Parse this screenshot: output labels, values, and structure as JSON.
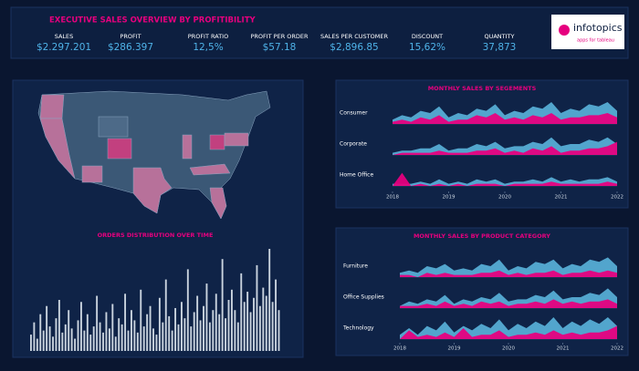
{
  "header": {
    "title": "EXECUTIVE SALES OVERVIEW BY PROFITIBILITY",
    "logo": "infotopics",
    "tagline": "apps for tableau"
  },
  "kpis": [
    {
      "label": "SALES",
      "value": "$2.297.201"
    },
    {
      "label": "PROFIT",
      "value": "$286.397"
    },
    {
      "label": "PROFIT RATIO",
      "value": "12,5%"
    },
    {
      "label": "PROFIT PER ORDER",
      "value": "$57.18"
    },
    {
      "label": "SALES PER CUSTOMER",
      "value": "$2,896.85"
    },
    {
      "label": "DISCOUNT",
      "value": "15,62%"
    },
    {
      "label": "QUANTITY",
      "value": "37,873"
    }
  ],
  "chart_data": [
    {
      "type": "bar",
      "title": "ORDERS DISTRIBUTION OVER TIME",
      "color": "#c9d3de",
      "values": [
        8,
        14,
        6,
        18,
        10,
        22,
        12,
        7,
        16,
        25,
        9,
        13,
        20,
        11,
        6,
        15,
        24,
        10,
        18,
        8,
        12,
        27,
        14,
        9,
        19,
        11,
        23,
        7,
        16,
        13,
        28,
        10,
        20,
        15,
        9,
        30,
        12,
        18,
        22,
        11,
        8,
        26,
        14,
        35,
        17,
        10,
        21,
        13,
        24,
        16,
        40,
        12,
        19,
        27,
        15,
        22,
        33,
        14,
        20,
        28,
        18,
        45,
        16,
        25,
        30,
        20,
        14,
        38,
        24,
        29,
        19,
        26,
        42,
        22,
        31,
        27,
        50,
        24,
        35,
        20
      ]
    },
    {
      "type": "area",
      "title": "MONTHLY SALES BY SEGEMENTS",
      "x": [
        2018,
        2018.17,
        2018.33,
        2018.5,
        2018.67,
        2018.83,
        2019,
        2019.17,
        2019.33,
        2019.5,
        2019.67,
        2019.83,
        2020,
        2020.17,
        2020.33,
        2020.5,
        2020.67,
        2020.83,
        2021,
        2021.17,
        2021.33,
        2021.5,
        2021.67,
        2021.83,
        2022
      ],
      "xlim": [
        2018,
        2022
      ],
      "xticks": [
        2018,
        2019,
        2020,
        2021,
        2022
      ],
      "panels": [
        {
          "label": "Consumer",
          "series": [
            {
              "color": "#5ab4dc",
              "values": [
                2,
                4,
                3,
                6,
                5,
                8,
                3,
                5,
                4,
                7,
                6,
                9,
                4,
                6,
                5,
                8,
                7,
                10,
                5,
                7,
                6,
                9,
                8,
                10,
                6
              ]
            },
            {
              "color": "#e6007e",
              "values": [
                1,
                2,
                1,
                3,
                2,
                4,
                1,
                2,
                2,
                4,
                3,
                5,
                2,
                3,
                2,
                4,
                3,
                5,
                2,
                3,
                3,
                4,
                4,
                5,
                3
              ]
            }
          ]
        },
        {
          "label": "Corporate",
          "series": [
            {
              "color": "#5ab4dc",
              "values": [
                1,
                2,
                2,
                3,
                3,
                5,
                2,
                3,
                3,
                5,
                4,
                6,
                3,
                4,
                4,
                6,
                5,
                8,
                4,
                5,
                5,
                7,
                6,
                8,
                5
              ]
            },
            {
              "color": "#e6007e",
              "values": [
                0,
                1,
                1,
                1,
                1,
                2,
                1,
                1,
                1,
                2,
                2,
                3,
                1,
                2,
                1,
                3,
                2,
                4,
                1,
                2,
                2,
                3,
                3,
                4,
                6
              ]
            }
          ]
        },
        {
          "label": "Home Office",
          "series": [
            {
              "color": "#5ab4dc",
              "values": [
                1,
                1,
                1,
                2,
                1,
                3,
                1,
                2,
                1,
                3,
                2,
                3,
                1,
                2,
                2,
                3,
                2,
                4,
                2,
                3,
                2,
                3,
                3,
                4,
                2
              ]
            },
            {
              "color": "#e6007e",
              "values": [
                0,
                6,
                0,
                1,
                0,
                1,
                0,
                1,
                0,
                1,
                1,
                1,
                0,
                1,
                1,
                1,
                1,
                2,
                1,
                1,
                1,
                1,
                1,
                2,
                1
              ]
            }
          ]
        }
      ]
    },
    {
      "type": "area",
      "title": "MONTHLY SALES BY PRODUCT CATEGORY",
      "x": [
        2018,
        2018.17,
        2018.33,
        2018.5,
        2018.67,
        2018.83,
        2019,
        2019.17,
        2019.33,
        2019.5,
        2019.67,
        2019.83,
        2020,
        2020.17,
        2020.33,
        2020.5,
        2020.67,
        2020.83,
        2021,
        2021.17,
        2021.33,
        2021.5,
        2021.67,
        2021.83,
        2022
      ],
      "xlim": [
        2018,
        2022
      ],
      "xticks": [
        2018,
        2019,
        2020,
        2021,
        2022
      ],
      "panels": [
        {
          "label": "Furniture",
          "series": [
            {
              "color": "#5ab4dc",
              "values": [
                2,
                3,
                2,
                5,
                4,
                6,
                3,
                4,
                3,
                6,
                5,
                8,
                3,
                5,
                4,
                7,
                6,
                8,
                4,
                6,
                5,
                8,
                7,
                9,
                5
              ]
            },
            {
              "color": "#e6007e",
              "values": [
                1,
                1,
                0,
                2,
                1,
                2,
                1,
                1,
                1,
                2,
                2,
                3,
                1,
                2,
                1,
                2,
                2,
                3,
                1,
                2,
                2,
                3,
                2,
                3,
                2
              ]
            }
          ]
        },
        {
          "label": "Office Supplies",
          "series": [
            {
              "color": "#5ab4dc",
              "values": [
                1,
                3,
                2,
                4,
                3,
                6,
                2,
                4,
                3,
                5,
                4,
                7,
                3,
                4,
                4,
                6,
                5,
                8,
                4,
                5,
                5,
                7,
                6,
                9,
                5
              ]
            },
            {
              "color": "#e6007e",
              "values": [
                1,
                1,
                1,
                2,
                1,
                3,
                1,
                2,
                1,
                3,
                2,
                3,
                1,
                2,
                2,
                3,
                2,
                4,
                2,
                3,
                2,
                3,
                3,
                4,
                2
              ]
            }
          ]
        },
        {
          "label": "Technology",
          "series": [
            {
              "color": "#5ab4dc",
              "values": [
                2,
                5,
                2,
                6,
                4,
                8,
                3,
                6,
                4,
                7,
                5,
                9,
                4,
                7,
                5,
                8,
                6,
                10,
                5,
                8,
                6,
                9,
                7,
                10,
                6
              ]
            },
            {
              "color": "#e6007e",
              "values": [
                0,
                4,
                1,
                2,
                1,
                3,
                1,
                5,
                1,
                2,
                2,
                4,
                1,
                2,
                2,
                3,
                2,
                4,
                2,
                3,
                2,
                3,
                3,
                4,
                6
              ]
            }
          ]
        }
      ]
    }
  ]
}
